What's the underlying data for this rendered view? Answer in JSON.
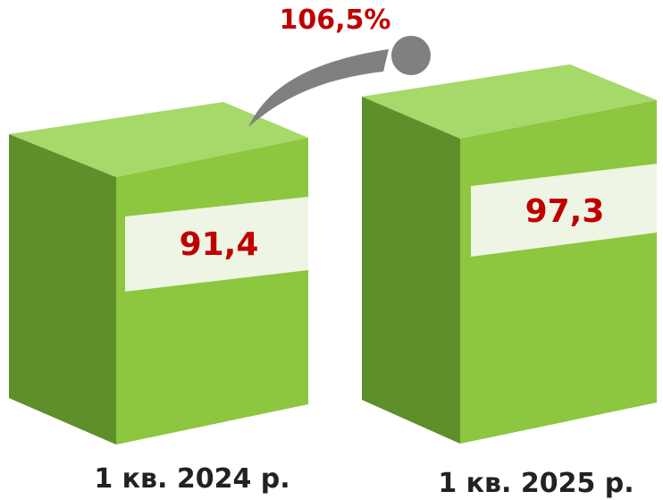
{
  "chart_data": {
    "type": "bar",
    "categories": [
      "1 кв. 2024 р.",
      "1 кв. 2025 р."
    ],
    "values": [
      91.4,
      97.3
    ],
    "value_labels": [
      "91,4",
      "97,3"
    ],
    "growth_label": "106,5%",
    "colors": {
      "front": "#8dc63f",
      "top": "#a6d86a",
      "side": "#5f8f2a",
      "label_bg": "#eef5e4",
      "value_text": "#c00000",
      "arrow": "#808080"
    }
  }
}
